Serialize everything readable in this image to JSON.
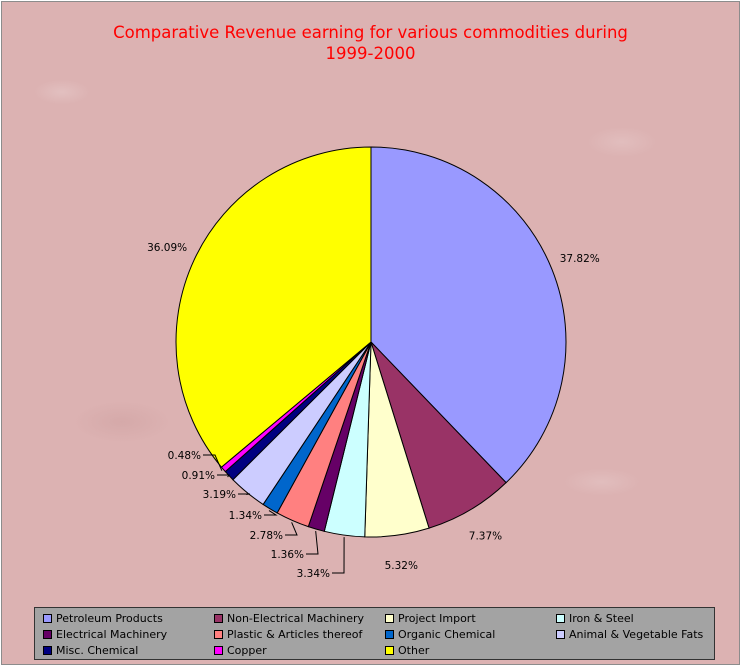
{
  "chart_data": {
    "type": "pie",
    "title_lines": [
      "Comparative Revenue earning for various commodities during",
      "1999-2000"
    ],
    "slices": [
      {
        "name": "Petroleum Products",
        "value": 37.82,
        "label": "37.82%",
        "color": "#9999ff"
      },
      {
        "name": "Non-Electrical Machinery",
        "value": 7.37,
        "label": "7.37%",
        "color": "#993366"
      },
      {
        "name": "Project Import",
        "value": 5.32,
        "label": "5.32%",
        "color": "#ffffcc"
      },
      {
        "name": "Iron & Steel",
        "value": 3.34,
        "label": "3.34%",
        "color": "#ccffff"
      },
      {
        "name": "Electrical Machinery",
        "value": 1.36,
        "label": "1.36%",
        "color": "#660066"
      },
      {
        "name": "Plastic & Articles thereof",
        "value": 2.78,
        "label": "2.78%",
        "color": "#ff8080"
      },
      {
        "name": "Organic Chemical",
        "value": 1.34,
        "label": "1.34%",
        "color": "#0066cc"
      },
      {
        "name": "Animal & Vegetable Fats",
        "value": 3.19,
        "label": "3.19%",
        "color": "#ccccff"
      },
      {
        "name": "Misc. Chemical",
        "value": 0.91,
        "label": "0.91%",
        "color": "#000080"
      },
      {
        "name": "Copper",
        "value": 0.48,
        "label": "0.48%",
        "color": "#ff00ff"
      },
      {
        "name": "Other",
        "value": 36.09,
        "label": "36.09%",
        "color": "#ffff00"
      }
    ],
    "legend_position": "bottom"
  }
}
